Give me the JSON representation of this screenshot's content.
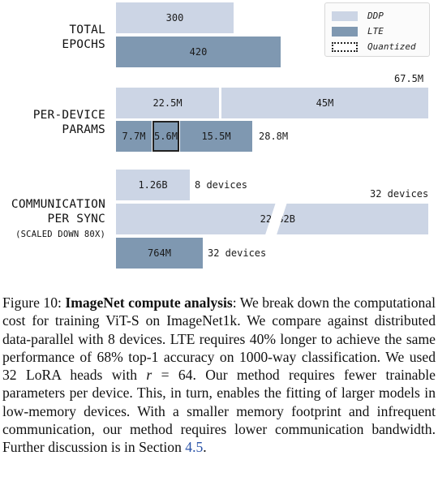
{
  "chart_data": {
    "type": "bar",
    "orientation": "horizontal",
    "legend": {
      "position": "top-right",
      "entries": [
        {
          "name": "DDP",
          "color": "#ccd5e5"
        },
        {
          "name": "LTE",
          "color": "#7f98b1"
        },
        {
          "name": "Quantized",
          "style": "dotted-outline"
        }
      ]
    },
    "groups": [
      {
        "label_lines": [
          "TOTAL",
          "EPOCHS"
        ],
        "rows": [
          {
            "series": "DDP",
            "segments": [
              {
                "value": 300,
                "label": "300"
              }
            ]
          },
          {
            "series": "LTE",
            "segments": [
              {
                "value": 420,
                "label": "420"
              }
            ]
          }
        ]
      },
      {
        "label_lines": [
          "PER-DEVICE",
          "PARAMS"
        ],
        "rows": [
          {
            "series": "DDP",
            "total_label": "67.5M",
            "segments": [
              {
                "value": 22.5,
                "label": "22.5M"
              },
              {
                "value": 45,
                "label": "45M"
              }
            ]
          },
          {
            "series": "LTE",
            "total_label": "28.8M",
            "segments": [
              {
                "value": 7.7,
                "label": "7.7M"
              },
              {
                "value": 5.6,
                "label": "5.6M",
                "quantized": true
              },
              {
                "value": 15.5,
                "label": "15.5M"
              }
            ]
          }
        ]
      },
      {
        "label_lines": [
          "COMMUNICATION",
          "PER SYNC"
        ],
        "sublabel": "(SCALED DOWN 80X)",
        "rows": [
          {
            "series": "DDP",
            "segments": [
              {
                "value": 1.26,
                "label": "1.26B"
              }
            ],
            "annotation": "8 devices"
          },
          {
            "series": "DDP",
            "segments": [
              {
                "value": 22.32,
                "label": "22.32B"
              }
            ],
            "annotation": "32 devices",
            "axis_break": true
          },
          {
            "series": "LTE",
            "segments": [
              {
                "value": 0.764,
                "label": "764M"
              }
            ],
            "annotation": "32 devices"
          }
        ]
      }
    ]
  },
  "caption": {
    "figure_label": "Figure 10:",
    "title": "ImageNet compute analysis",
    "text_1": ": We break down the computational cost for training ViT-S on ImageNet1k. We compare against distributed data-parallel with 8 devices. LTE requires 40% longer to achieve the same performance of 68% top-1 accuracy on 1000-way classification. We used 32 LoRA heads with ",
    "var_r": "r",
    "text_2": " = 64. Our method requires fewer trainable parameters per device. This, in turn, enables the fitting of larger models in low-memory devices. With a smaller memory footprint and infrequent communication, our method requires lower communication bandwidth. Further discussion is in Section ",
    "section_ref": "4.5",
    "text_3": "."
  }
}
